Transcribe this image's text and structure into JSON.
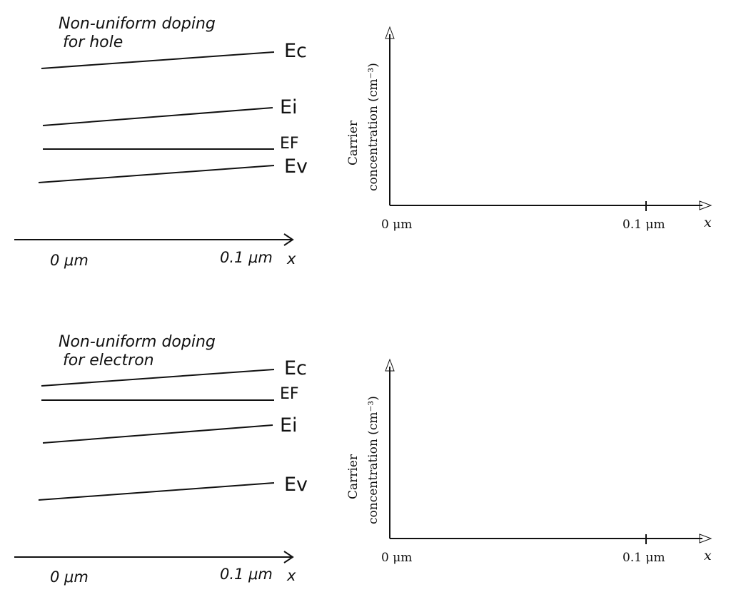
{
  "panels": [
    {
      "band_diagram": {
        "note_line1": "Non-uniform doping",
        "note_line2": "for hole",
        "levels": [
          "Ec",
          "Ei",
          "EF",
          "Ev"
        ],
        "axis_start": "0 μm",
        "axis_end": "0.1 μm",
        "axis_var": "x"
      },
      "plot": {
        "ylabel_line1": "Carrier",
        "ylabel_line2": "concentration (cm⁻³)",
        "x_start": "0 μm",
        "x_tick": "0.1 μm",
        "x_var": "x"
      }
    },
    {
      "band_diagram": {
        "note_line1": "Non-uniform doping",
        "note_line2": "for electron",
        "levels": [
          "Ec",
          "EF",
          "Ei",
          "Ev"
        ],
        "axis_start": "0 μm",
        "axis_end": "0.1 μm",
        "axis_var": "x"
      },
      "plot": {
        "ylabel_line1": "Carrier",
        "ylabel_line2": "concentration (cm⁻³)",
        "x_start": "0 μm",
        "x_tick": "0.1 μm",
        "x_var": "x"
      }
    }
  ]
}
